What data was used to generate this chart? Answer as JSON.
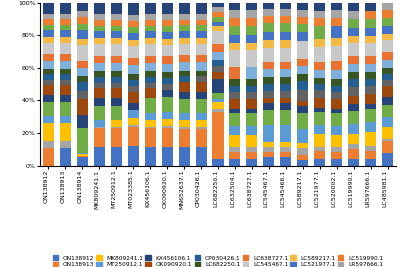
{
  "categories": [
    "ON138912",
    "ON138913",
    "ON138914",
    "MK809241.1",
    "MT250912.1",
    "MT023385.1",
    "KX456106.1",
    "OK090920.1",
    "MN652637.1",
    "CP030426.1",
    "LC682250.1",
    "LC632504.1",
    "LC638727.1",
    "LC545467.1",
    "LC545466.1",
    "LC589217.1",
    "LC521977.1",
    "LC520002.1",
    "LC519990.1",
    "LR597666.1",
    "LC485981.1"
  ],
  "legend_labels": [
    "ON138912",
    "ON138913",
    "ON138914",
    "MK809241.1",
    "MT250912.1",
    "MT023385.1",
    "KX456106.1",
    "OK090920.1",
    "MN652637.1",
    "CP030426.1",
    "LC682250.1",
    "LC632504.1",
    "LC638727.1",
    "LC545467.1",
    "LC545466.1",
    "LC589217.1",
    "LC521977.1",
    "LC520002.1",
    "LC519990.1",
    "LR597666.1",
    "LC485981.1"
  ],
  "colors": [
    "#4472C4",
    "#ED7D31",
    "#A5A5A5",
    "#FFC000",
    "#5B9BD5",
    "#70AD47",
    "#264478",
    "#9E480E",
    "#636363",
    "#255E91",
    "#375623",
    "#7DAFDA",
    "#E97132",
    "#C9C9C9",
    "#C9C9C9",
    "#F4B942",
    "#4472C4",
    "#70AD47",
    "#ED7D31",
    "#A5A5A5",
    "#264478"
  ],
  "bar_colors_refined": {
    "s0": "#4472C4",
    "s1": "#ED7D31",
    "s2": "#A5A5A5",
    "s3": "#FFC000",
    "s4": "#5B9BD5",
    "s5": "#70AD47",
    "s6": "#264478",
    "s7": "#9E480E",
    "s8": "#636363",
    "s9": "#255E91",
    "s10": "#375623",
    "s11": "#7DAFDA",
    "s12": "#E97132",
    "s13": "#C9C9C9",
    "s14": "#BFBFBF",
    "s15": "#F4B942",
    "s16": "#4472C4",
    "s17": "#70AD47",
    "s18": "#ED7D31",
    "s19": "#A5A5A5",
    "s20": "#264478"
  },
  "data_raw": {
    "ON138912": [
      0,
      13,
      5,
      13,
      5,
      10,
      5,
      7,
      4,
      4,
      4,
      6,
      5,
      4,
      4,
      4,
      5,
      4,
      4,
      4,
      8
    ],
    "ON138913": [
      13,
      0,
      5,
      13,
      5,
      10,
      5,
      7,
      4,
      4,
      4,
      6,
      5,
      4,
      4,
      4,
      5,
      4,
      4,
      4,
      8
    ],
    "ON138914": [
      5,
      1,
      0,
      1,
      1,
      15,
      8,
      10,
      5,
      5,
      4,
      5,
      4,
      5,
      5,
      4,
      5,
      4,
      4,
      4,
      5
    ],
    "MK809241.1": [
      13,
      13,
      1,
      0,
      5,
      10,
      5,
      7,
      4,
      4,
      4,
      6,
      5,
      4,
      4,
      4,
      5,
      4,
      4,
      4,
      8
    ],
    "MT250912.1": [
      13,
      13,
      1,
      5,
      0,
      10,
      5,
      7,
      4,
      4,
      4,
      6,
      5,
      4,
      4,
      4,
      5,
      4,
      4,
      4,
      8
    ],
    "MT023385.1": [
      13,
      13,
      1,
      5,
      5,
      0,
      5,
      7,
      4,
      4,
      4,
      6,
      5,
      4,
      4,
      4,
      5,
      4,
      4,
      4,
      8
    ],
    "KX456106.1": [
      13,
      13,
      1,
      5,
      5,
      10,
      0,
      7,
      4,
      4,
      4,
      6,
      5,
      4,
      4,
      4,
      5,
      4,
      4,
      4,
      8
    ],
    "OK090920.1": [
      13,
      13,
      1,
      5,
      5,
      10,
      5,
      0,
      4,
      4,
      4,
      6,
      5,
      4,
      4,
      4,
      5,
      4,
      4,
      4,
      8
    ],
    "MN652637.1": [
      13,
      13,
      1,
      5,
      5,
      10,
      5,
      7,
      0,
      4,
      4,
      6,
      5,
      4,
      4,
      4,
      5,
      4,
      4,
      4,
      8
    ],
    "CP030426.1": [
      13,
      13,
      1,
      5,
      5,
      10,
      5,
      7,
      4,
      0,
      4,
      6,
      5,
      4,
      4,
      4,
      5,
      4,
      4,
      4,
      8
    ],
    "LC682250.1": [
      4,
      30,
      2,
      4,
      2,
      4,
      9,
      4,
      4,
      4,
      0,
      5,
      5,
      5,
      3,
      3,
      3,
      3,
      3,
      3,
      3
    ],
    "LC632504.1": [
      4,
      5,
      3,
      8,
      6,
      8,
      3,
      6,
      5,
      4,
      4,
      0,
      8,
      6,
      5,
      5,
      5,
      6,
      5,
      5,
      5
    ],
    "LC638727.1": [
      4,
      5,
      3,
      8,
      6,
      8,
      3,
      6,
      5,
      4,
      4,
      8,
      0,
      6,
      5,
      5,
      5,
      6,
      5,
      5,
      5
    ],
    "LC545467.1": [
      5,
      3,
      3,
      3,
      10,
      9,
      4,
      3,
      4,
      4,
      4,
      5,
      4,
      0,
      8,
      5,
      5,
      5,
      4,
      4,
      4
    ],
    "LC545466.1": [
      5,
      3,
      3,
      3,
      10,
      9,
      4,
      3,
      4,
      4,
      4,
      5,
      4,
      8,
      0,
      5,
      5,
      5,
      4,
      4,
      4
    ],
    "LC589217.1": [
      3,
      3,
      4,
      3,
      8,
      9,
      4,
      3,
      6,
      5,
      4,
      5,
      4,
      5,
      5,
      0,
      5,
      5,
      4,
      4,
      4
    ],
    "LC521977.1": [
      4,
      5,
      3,
      8,
      6,
      8,
      3,
      6,
      5,
      4,
      4,
      5,
      5,
      5,
      5,
      5,
      0,
      8,
      5,
      5,
      5
    ],
    "LC520002.1": [
      4,
      5,
      3,
      8,
      6,
      8,
      3,
      6,
      5,
      4,
      4,
      6,
      6,
      5,
      5,
      5,
      8,
      0,
      5,
      5,
      5
    ],
    "LC519990.1": [
      4,
      6,
      3,
      6,
      6,
      8,
      4,
      5,
      5,
      5,
      4,
      5,
      5,
      4,
      4,
      4,
      5,
      5,
      0,
      5,
      5
    ],
    "LR597666.1": [
      4,
      5,
      3,
      8,
      6,
      8,
      3,
      6,
      5,
      4,
      4,
      5,
      5,
      4,
      4,
      4,
      5,
      5,
      5,
      0,
      5
    ],
    "LC485981.1": [
      8,
      8,
      1,
      8,
      6,
      8,
      5,
      7,
      4,
      4,
      4,
      5,
      5,
      4,
      4,
      4,
      5,
      5,
      5,
      5,
      0
    ]
  },
  "yticks": [
    0,
    0.2,
    0.4,
    0.6,
    0.8,
    1.0
  ],
  "ytick_labels": [
    "0%",
    "20%",
    "40%",
    "60%",
    "80%",
    "100%"
  ],
  "legend_ncol": 7,
  "legend_fontsize": 4.2,
  "tick_fontsize": 4.5,
  "bar_width": 0.65
}
